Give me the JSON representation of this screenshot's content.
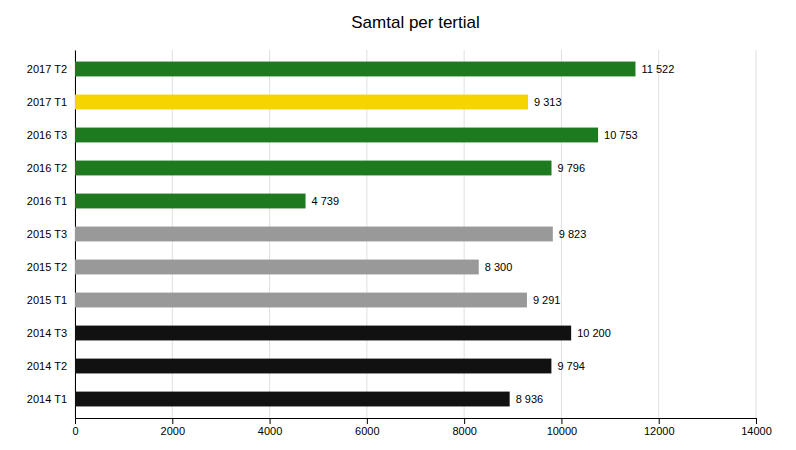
{
  "chart_data": {
    "type": "bar",
    "orientation": "horizontal",
    "title": "Samtal per tertial",
    "categories": [
      "2017 T2",
      "2017 T1",
      "2016 T3",
      "2016 T2",
      "2016 T1",
      "2015 T3",
      "2015 T2",
      "2015 T1",
      "2014 T3",
      "2014 T2",
      "2014 T1"
    ],
    "values": [
      11522,
      9313,
      10753,
      9796,
      4739,
      9823,
      8300,
      9291,
      10200,
      9794,
      8936
    ],
    "value_labels": [
      "11 522",
      "9 313",
      "10 753",
      "9 796",
      "4 739",
      "9 823",
      "8 300",
      "9 291",
      "10 200",
      "9 794",
      "8 936"
    ],
    "colors": [
      "#1e7a1e",
      "#f5d400",
      "#1e7a1e",
      "#1e7a1e",
      "#1e7a1e",
      "#999999",
      "#999999",
      "#999999",
      "#111111",
      "#111111",
      "#111111"
    ],
    "xlim": [
      0,
      14000
    ],
    "xticks": [
      0,
      2000,
      4000,
      6000,
      8000,
      10000,
      12000,
      14000
    ],
    "grid": true,
    "data_labels": true
  }
}
